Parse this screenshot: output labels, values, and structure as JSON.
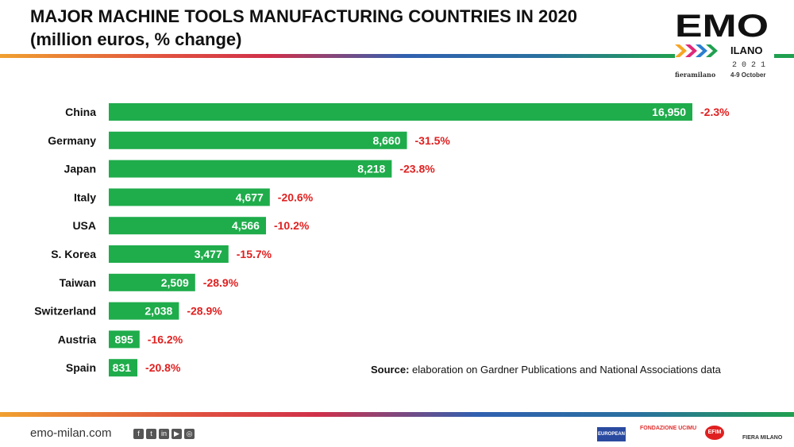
{
  "header": {
    "title_line1": "MAJOR MACHINE TOOLS MANUFACTURING COUNTRIES IN 2020",
    "title_line2": "(million euros, % change)"
  },
  "logo": {
    "emo": "EMO",
    "ilano": "ILANO",
    "year": "2 0 2 1",
    "venue": "fieramilano",
    "dates": "4-9 October"
  },
  "chart_data": {
    "type": "bar",
    "orientation": "horizontal",
    "title": "MAJOR MACHINE TOOLS MANUFACTURING COUNTRIES IN 2020",
    "subtitle": "(million euros, % change)",
    "categories": [
      "China",
      "Germany",
      "Japan",
      "Italy",
      "USA",
      "S. Korea",
      "Taiwan",
      "Switzerland",
      "Austria",
      "Spain"
    ],
    "values": [
      16950,
      8660,
      8218,
      4677,
      4566,
      3477,
      2509,
      2038,
      895,
      831
    ],
    "value_labels": [
      "16,950",
      "8,660",
      "8,218",
      "4,677",
      "4,566",
      "3,477",
      "2,509",
      "2,038",
      "895",
      "831"
    ],
    "changes": [
      "-2.3%",
      "-31.5%",
      "-23.8%",
      "-20.6%",
      "-10.2%",
      "-15.7%",
      "-28.9%",
      "-28.9%",
      "-16.2%",
      "-20.8%"
    ],
    "xlim": [
      0,
      16950
    ],
    "bar_color": "#1fac4b",
    "change_color": "#e02020"
  },
  "source": {
    "label": "Source:",
    "text": " elaboration on Gardner Publications and National Associations data"
  },
  "footer": {
    "url": "emo-milan.com",
    "social": [
      "f",
      "t",
      "in",
      "▶",
      "◎"
    ],
    "partners": [
      "EUROPEAN",
      "FONDAZIONE UCIMU",
      "EFIM",
      "FIERA MILANO"
    ]
  }
}
